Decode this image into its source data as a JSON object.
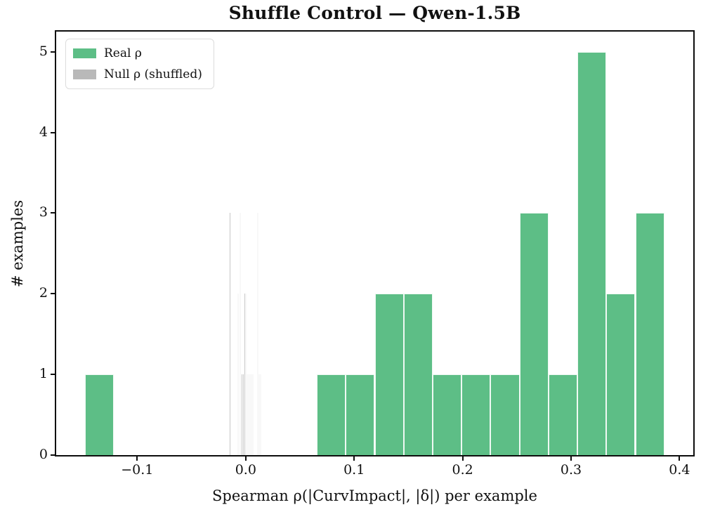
{
  "figure": {
    "title": "Shuffle Control — Qwen-1.5B",
    "xlabel": "Spearman ρ(|CurvImpact|, |δ|) per example",
    "ylabel": "# examples"
  },
  "legend": {
    "position": "upper left",
    "items": [
      {
        "label": "Real ρ",
        "color": "#5dbe86"
      },
      {
        "label": "Null ρ (shuffled)",
        "color": "#b9b9b9"
      }
    ]
  },
  "chart_data": {
    "type": "bar",
    "subtype": "histogram",
    "title": "Shuffle Control — Qwen-1.5B",
    "xlabel": "Spearman ρ(|CurvImpact|, |δ|) per example",
    "ylabel": "# examples",
    "xlim": [
      -0.1747,
      0.4127
    ],
    "ylim": [
      0,
      5.25
    ],
    "grid": false,
    "legend_position": "upper left",
    "xticks": {
      "values": [
        -0.1,
        0.0,
        0.1,
        0.2,
        0.3,
        0.4
      ],
      "labels": [
        "−0.1",
        "0.0",
        "0.1",
        "0.2",
        "0.3",
        "0.4"
      ]
    },
    "yticks": {
      "values": [
        0,
        1,
        2,
        3,
        4,
        5
      ],
      "labels": [
        "0",
        "1",
        "2",
        "3",
        "4",
        "5"
      ]
    },
    "series": [
      {
        "name": "Real ρ",
        "color": "#5dbe86",
        "edge_color": "#ffffff",
        "bin_width": 0.0267,
        "total_count": 24,
        "bins": [
          {
            "x0": -0.148,
            "count": 1
          },
          {
            "x0": 0.0656,
            "count": 1
          },
          {
            "x0": 0.0923,
            "count": 1
          },
          {
            "x0": 0.119,
            "count": 2
          },
          {
            "x0": 0.1457,
            "count": 2
          },
          {
            "x0": 0.1724,
            "count": 1
          },
          {
            "x0": 0.1991,
            "count": 1
          },
          {
            "x0": 0.2258,
            "count": 1
          },
          {
            "x0": 0.2525,
            "count": 3
          },
          {
            "x0": 0.2792,
            "count": 1
          },
          {
            "x0": 0.3059,
            "count": 5
          },
          {
            "x0": 0.3326,
            "count": 2
          },
          {
            "x0": 0.3593,
            "count": 3
          }
        ]
      },
      {
        "name": "Null ρ (shuffled)",
        "color": "#d0d0d0",
        "edge_color": "#ffffff",
        "bin_width": 0.0015,
        "total_count": 24,
        "bins": [
          {
            "x0": -0.0152,
            "count": 3
          },
          {
            "x0": -0.0079,
            "count": 2
          },
          {
            "x0": -0.0057,
            "count": 3
          },
          {
            "x0": -0.0042,
            "count": 1
          },
          {
            "x0": -0.0029,
            "count": 1
          },
          {
            "x0": -0.0016,
            "count": 2
          },
          {
            "x0": -0.0004,
            "count": 2
          },
          {
            "x0": 0.0006,
            "count": 1
          },
          {
            "x0": 0.0018,
            "count": 1
          },
          {
            "x0": 0.0031,
            "count": 1
          },
          {
            "x0": 0.0045,
            "count": 1
          },
          {
            "x0": 0.0058,
            "count": 1
          },
          {
            "x0": 0.0103,
            "count": 3
          },
          {
            "x0": 0.0118,
            "count": 1
          },
          {
            "x0": 0.0131,
            "count": 1
          }
        ]
      }
    ]
  }
}
